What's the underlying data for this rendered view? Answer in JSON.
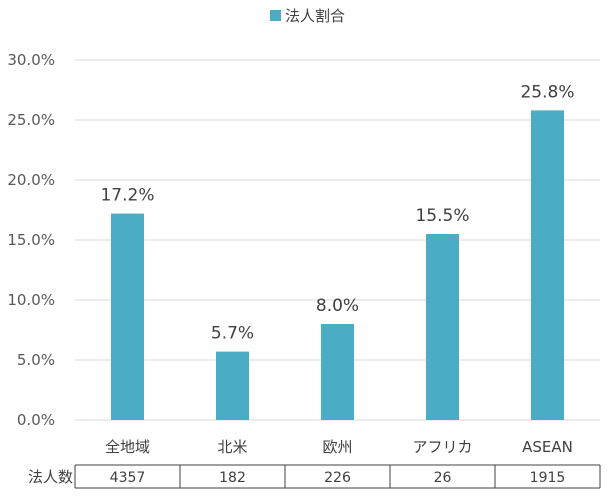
{
  "chart_data": {
    "type": "bar",
    "legend": {
      "label": "法人割合",
      "color": "#4BACC6",
      "position": "top"
    },
    "categories": [
      "全地域",
      "北米",
      "欧州",
      "アフリカ",
      "ASEAN"
    ],
    "series": [
      {
        "name": "法人割合",
        "values": [
          17.2,
          5.7,
          8.0,
          15.5,
          25.8
        ],
        "color": "#4BACC6"
      }
    ],
    "data_labels": [
      "17.2%",
      "5.7%",
      "8.0%",
      "15.5%",
      "25.8%"
    ],
    "y_ticks": [
      "0.0%",
      "5.0%",
      "10.0%",
      "15.0%",
      "20.0%",
      "25.0%",
      "30.0%"
    ],
    "ylim": [
      0,
      30
    ],
    "grid": true,
    "table": {
      "header": "法人数",
      "values": [
        "4357",
        "182",
        "226",
        "26",
        "1915"
      ]
    }
  }
}
